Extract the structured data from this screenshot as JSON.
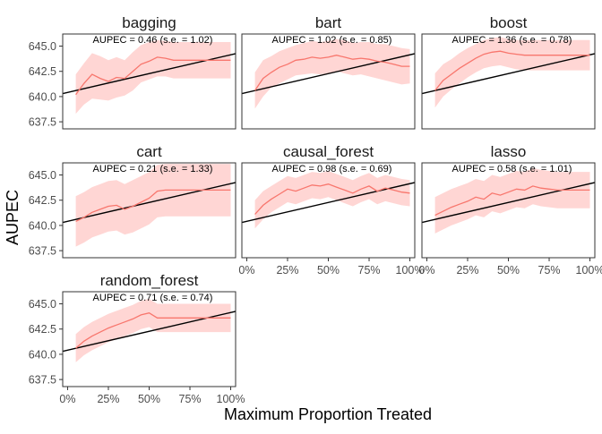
{
  "chart_data": {
    "type": "line",
    "ylabel": "AUPEC",
    "xlabel": "Maximum Proportion Treated",
    "ylim": [
      636.8,
      646.2
    ],
    "xlim": [
      -0.03,
      1.03
    ],
    "y_ticks": [
      637.5,
      640.0,
      642.5,
      645.0
    ],
    "y_tick_labels": [
      "637.5",
      "640.0",
      "642.5",
      "645.0"
    ],
    "x_ticks": [
      0,
      0.25,
      0.5,
      0.75,
      1.0
    ],
    "x_tick_labels": [
      "0%",
      "25%",
      "50%",
      "75%",
      "100%"
    ],
    "colors": {
      "curve": "#f8766d",
      "band": "#ffd6d4",
      "baseline": "#000000",
      "panel_border": "#333333"
    },
    "baseline": {
      "x": [
        -0.03,
        1.03
      ],
      "y": [
        640.3,
        644.25
      ]
    },
    "panels": [
      {
        "title": "bagging",
        "annotation": "AUPEC = 0.46 (s.e. = 1.02)",
        "x": [
          0.05,
          0.1,
          0.15,
          0.2,
          0.25,
          0.3,
          0.35,
          0.4,
          0.45,
          0.5,
          0.55,
          0.6,
          0.65,
          0.7,
          0.75,
          0.8,
          0.85,
          0.9,
          0.95,
          1.0
        ],
        "y": [
          640.2,
          641.3,
          642.2,
          641.8,
          641.5,
          641.9,
          641.8,
          642.5,
          643.2,
          643.5,
          643.9,
          643.8,
          643.6,
          643.6,
          643.6,
          643.6,
          643.6,
          643.6,
          643.6,
          643.6
        ],
        "lower": [
          638.3,
          639.2,
          639.8,
          639.7,
          639.6,
          639.9,
          640.1,
          640.6,
          641.4,
          641.7,
          642.0,
          642.0,
          641.8,
          641.8,
          641.8,
          641.8,
          641.8,
          641.8,
          641.8,
          641.8
        ],
        "upper": [
          642.2,
          643.3,
          644.3,
          644.0,
          643.6,
          643.9,
          643.6,
          644.4,
          645.1,
          645.4,
          645.6,
          645.5,
          645.4,
          645.4,
          645.4,
          645.4,
          645.4,
          645.4,
          645.4,
          645.4
        ]
      },
      {
        "title": "bart",
        "annotation": "AUPEC = 1.02 (s.e. = 0.85)",
        "x": [
          0.05,
          0.1,
          0.15,
          0.2,
          0.25,
          0.3,
          0.35,
          0.4,
          0.45,
          0.5,
          0.55,
          0.6,
          0.65,
          0.7,
          0.75,
          0.8,
          0.85,
          0.9,
          0.95,
          1.0
        ],
        "y": [
          640.6,
          641.8,
          642.4,
          642.9,
          643.2,
          643.6,
          643.7,
          643.9,
          643.8,
          643.9,
          644.1,
          643.9,
          643.7,
          643.8,
          643.7,
          643.5,
          643.4,
          643.2,
          643.0,
          643.0
        ],
        "lower": [
          638.8,
          640.0,
          640.9,
          641.3,
          641.7,
          642.1,
          642.2,
          642.3,
          642.2,
          642.3,
          642.5,
          642.3,
          642.1,
          642.2,
          642.0,
          641.8,
          641.6,
          641.4,
          641.2,
          641.3
        ],
        "upper": [
          642.4,
          643.6,
          644.0,
          644.5,
          644.8,
          645.1,
          645.3,
          645.5,
          645.4,
          645.5,
          645.7,
          645.6,
          645.3,
          645.4,
          645.4,
          645.2,
          645.2,
          645.0,
          644.8,
          644.7
        ]
      },
      {
        "title": "boost",
        "annotation": "AUPEC = 1.36 (s.e. = 0.78)",
        "x": [
          0.05,
          0.1,
          0.15,
          0.2,
          0.25,
          0.3,
          0.35,
          0.4,
          0.45,
          0.5,
          0.55,
          0.6,
          0.65,
          0.7,
          0.75,
          0.8,
          0.85,
          0.9,
          0.95,
          1.0
        ],
        "y": [
          640.6,
          641.6,
          642.2,
          642.8,
          643.3,
          643.8,
          644.2,
          644.4,
          644.5,
          644.3,
          644.2,
          644.1,
          644.1,
          644.1,
          644.1,
          644.1,
          644.1,
          644.1,
          644.1,
          644.1
        ],
        "lower": [
          638.9,
          640.0,
          640.7,
          641.3,
          641.9,
          642.4,
          642.8,
          643.0,
          643.1,
          642.9,
          642.7,
          642.6,
          642.6,
          642.6,
          642.6,
          642.6,
          642.6,
          642.6,
          642.6,
          642.6
        ],
        "upper": [
          642.3,
          643.2,
          643.7,
          644.3,
          644.8,
          645.2,
          645.6,
          645.8,
          645.9,
          645.7,
          645.6,
          645.6,
          645.6,
          645.6,
          645.6,
          645.6,
          645.6,
          645.6,
          645.6,
          645.6
        ]
      },
      {
        "title": "cart",
        "annotation": "AUPEC = 0.21 (s.e. = 1.33)",
        "x": [
          0.05,
          0.1,
          0.15,
          0.2,
          0.25,
          0.3,
          0.35,
          0.4,
          0.45,
          0.5,
          0.55,
          0.6,
          0.65,
          0.7,
          0.75,
          0.8,
          0.85,
          0.9,
          0.95,
          1.0
        ],
        "y": [
          640.4,
          640.8,
          641.3,
          641.6,
          641.9,
          642.0,
          641.6,
          641.9,
          642.3,
          642.7,
          643.4,
          643.5,
          643.5,
          643.5,
          643.5,
          643.5,
          643.5,
          643.5,
          643.5,
          643.5
        ],
        "lower": [
          637.9,
          638.3,
          638.8,
          639.1,
          639.4,
          639.5,
          639.1,
          639.3,
          639.7,
          640.1,
          640.8,
          640.9,
          640.9,
          640.9,
          640.9,
          640.9,
          640.9,
          640.9,
          640.9,
          640.9
        ],
        "upper": [
          642.9,
          643.3,
          643.8,
          644.1,
          644.4,
          644.5,
          644.1,
          644.5,
          644.9,
          645.3,
          646.0,
          646.1,
          646.1,
          646.1,
          646.1,
          646.1,
          646.1,
          646.1,
          646.1,
          646.1
        ]
      },
      {
        "title": "causal_forest",
        "annotation": "AUPEC = 0.98 (s.e. = 0.69)",
        "x": [
          0.05,
          0.1,
          0.15,
          0.2,
          0.25,
          0.3,
          0.35,
          0.4,
          0.45,
          0.5,
          0.55,
          0.6,
          0.65,
          0.7,
          0.75,
          0.8,
          0.85,
          0.9,
          0.95,
          1.0
        ],
        "y": [
          641.1,
          642.0,
          642.6,
          643.1,
          643.6,
          643.4,
          643.7,
          644.0,
          643.9,
          644.1,
          643.8,
          643.5,
          643.2,
          643.6,
          643.9,
          643.4,
          643.7,
          643.5,
          643.3,
          643.2
        ],
        "lower": [
          639.7,
          640.6,
          641.3,
          641.8,
          642.3,
          642.1,
          642.4,
          642.7,
          642.6,
          642.8,
          642.5,
          642.2,
          641.9,
          642.3,
          642.6,
          642.1,
          642.4,
          642.2,
          642.0,
          641.9
        ],
        "upper": [
          642.5,
          643.4,
          643.9,
          644.4,
          644.9,
          644.7,
          645.0,
          645.3,
          645.2,
          645.4,
          645.1,
          644.8,
          644.5,
          644.9,
          645.2,
          644.7,
          645.0,
          644.8,
          644.6,
          644.5
        ]
      },
      {
        "title": "lasso",
        "annotation": "AUPEC = 0.58 (s.e. = 1.01)",
        "x": [
          0.05,
          0.1,
          0.15,
          0.2,
          0.25,
          0.3,
          0.35,
          0.4,
          0.45,
          0.5,
          0.55,
          0.6,
          0.65,
          0.7,
          0.75,
          0.8,
          0.85,
          0.9,
          0.95,
          1.0
        ],
        "y": [
          641.0,
          641.4,
          641.8,
          642.1,
          642.4,
          642.8,
          642.6,
          643.2,
          643.0,
          643.3,
          643.6,
          643.5,
          643.9,
          643.7,
          643.6,
          643.5,
          643.5,
          643.5,
          643.5,
          643.5
        ],
        "lower": [
          639.2,
          639.6,
          640.0,
          640.3,
          640.6,
          641.0,
          640.8,
          641.4,
          641.2,
          641.5,
          641.8,
          641.7,
          642.1,
          641.9,
          641.8,
          641.7,
          641.7,
          641.7,
          641.7,
          641.7
        ],
        "upper": [
          642.8,
          643.2,
          643.6,
          643.9,
          644.2,
          644.6,
          644.4,
          645.0,
          644.8,
          645.1,
          645.4,
          645.3,
          645.7,
          645.5,
          645.4,
          645.3,
          645.3,
          645.3,
          645.3,
          645.3
        ]
      },
      {
        "title": "random_forest",
        "annotation": "AUPEC = 0.71 (s.e. = 0.74)",
        "x": [
          0.05,
          0.1,
          0.15,
          0.2,
          0.25,
          0.3,
          0.35,
          0.4,
          0.45,
          0.5,
          0.55,
          0.6,
          0.65,
          0.7,
          0.75,
          0.8,
          0.85,
          0.9,
          0.95,
          1.0
        ],
        "y": [
          640.6,
          641.3,
          641.8,
          642.2,
          642.6,
          642.9,
          643.2,
          643.5,
          643.9,
          644.1,
          643.6,
          643.6,
          643.6,
          643.6,
          643.6,
          643.6,
          643.6,
          643.6,
          643.6,
          643.6
        ],
        "lower": [
          639.2,
          639.9,
          640.4,
          640.8,
          641.2,
          641.5,
          641.8,
          642.1,
          642.5,
          642.7,
          642.2,
          642.2,
          642.2,
          642.2,
          642.2,
          642.2,
          642.2,
          642.2,
          642.2,
          642.2
        ],
        "upper": [
          642.0,
          642.7,
          643.2,
          643.6,
          644.0,
          644.3,
          644.6,
          644.9,
          645.3,
          645.5,
          645.0,
          645.0,
          645.0,
          645.0,
          645.0,
          645.0,
          645.0,
          645.0,
          645.0,
          645.0
        ]
      }
    ]
  }
}
